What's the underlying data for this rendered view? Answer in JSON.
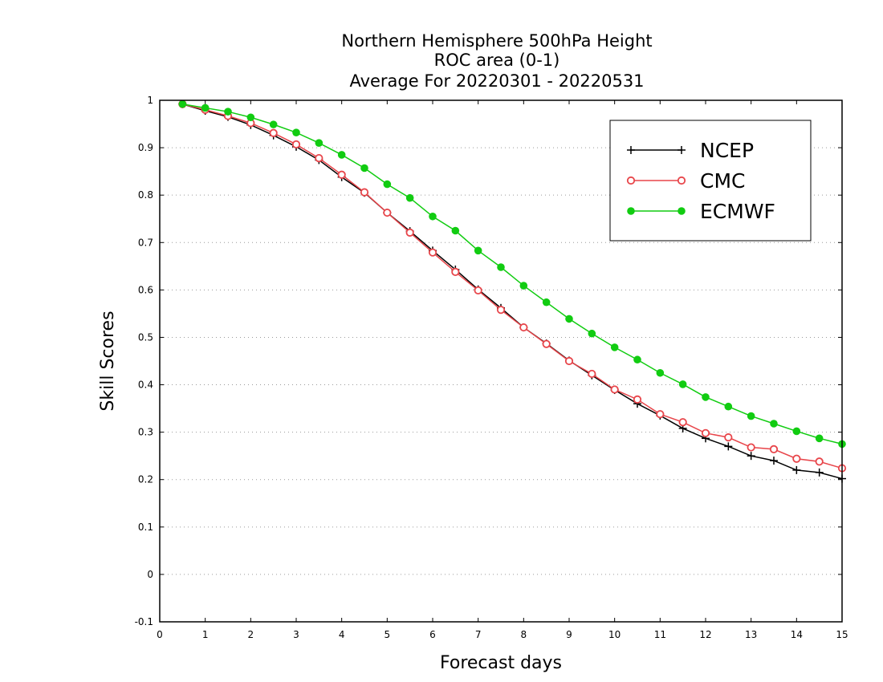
{
  "chart_data": {
    "type": "line",
    "title": [
      "Northern Hemisphere 500hPa Height",
      "ROC area (0-1)",
      "Average For 20220301 - 20220531"
    ],
    "xlabel": "Forecast days",
    "ylabel": "Skill Scores",
    "xlim": [
      0,
      15
    ],
    "ylim": [
      -0.1,
      1
    ],
    "x_ticks": [
      "0",
      "1",
      "2",
      "3",
      "4",
      "5",
      "6",
      "7",
      "8",
      "9",
      "10",
      "11",
      "12",
      "13",
      "14",
      "15"
    ],
    "y_ticks": [
      "-0.1",
      "0",
      "0.1",
      "0.2",
      "0.3",
      "0.4",
      "0.5",
      "0.6",
      "0.7",
      "0.8",
      "0.9",
      "1"
    ],
    "grid": "horizontal dotted",
    "legend_position": "top-right",
    "x": [
      0.5,
      1,
      1.5,
      2,
      2.5,
      3,
      3.5,
      4,
      4.5,
      5,
      5.5,
      6,
      6.5,
      7,
      7.5,
      8,
      8.5,
      9,
      9.5,
      10,
      10.5,
      11,
      11.5,
      12,
      12.5,
      13,
      13.5,
      14,
      14.5,
      15
    ],
    "series": [
      {
        "name": "NCEP",
        "color": "#000000",
        "marker": "plus",
        "values": [
          0.992,
          0.978,
          0.965,
          0.948,
          0.926,
          0.902,
          0.874,
          0.838,
          0.805,
          0.763,
          0.724,
          0.683,
          0.643,
          0.601,
          0.562,
          0.521,
          0.487,
          0.451,
          0.42,
          0.389,
          0.36,
          0.335,
          0.308,
          0.287,
          0.27,
          0.25,
          0.24,
          0.22,
          0.215,
          0.202
        ]
      },
      {
        "name": "CMC",
        "color": "#e8454a",
        "marker": "open-circle",
        "values": [
          0.992,
          0.98,
          0.967,
          0.952,
          0.931,
          0.907,
          0.878,
          0.843,
          0.806,
          0.763,
          0.721,
          0.679,
          0.638,
          0.599,
          0.558,
          0.521,
          0.486,
          0.45,
          0.423,
          0.39,
          0.369,
          0.338,
          0.321,
          0.298,
          0.289,
          0.268,
          0.264,
          0.244,
          0.238,
          0.224
        ]
      },
      {
        "name": "ECMWF",
        "color": "#11cc11",
        "marker": "filled-circle",
        "values": [
          0.992,
          0.984,
          0.976,
          0.964,
          0.949,
          0.932,
          0.91,
          0.885,
          0.857,
          0.823,
          0.794,
          0.755,
          0.725,
          0.683,
          0.648,
          0.609,
          0.574,
          0.539,
          0.508,
          0.479,
          0.453,
          0.425,
          0.401,
          0.374,
          0.354,
          0.334,
          0.318,
          0.302,
          0.287,
          0.275
        ]
      }
    ]
  }
}
